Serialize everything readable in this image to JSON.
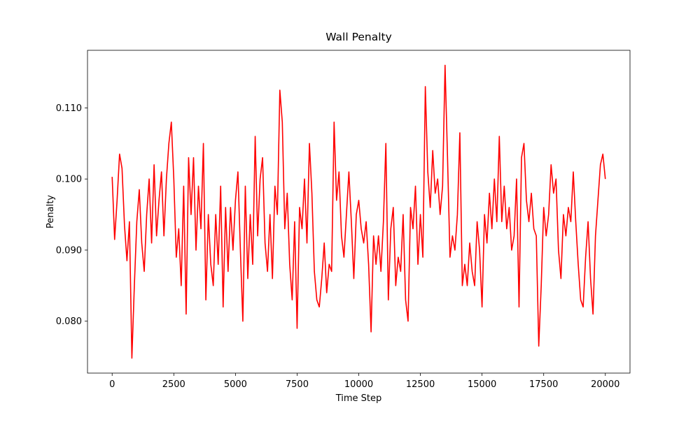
{
  "chart_data": {
    "type": "line",
    "title": "Wall Penalty",
    "x_label": "Time Step",
    "y_label": "Penalty",
    "xlim": [
      -1000,
      21000
    ],
    "ylim": [
      0.0727,
      0.1181
    ],
    "xticks": [
      0,
      2500,
      5000,
      7500,
      10000,
      12500,
      15000,
      17500,
      20000
    ],
    "yticks": [
      {
        "value": 0.08,
        "label": "0.080"
      },
      {
        "value": 0.09,
        "label": "0.090"
      },
      {
        "value": 0.1,
        "label": "0.100"
      },
      {
        "value": 0.11,
        "label": "0.110"
      }
    ],
    "grid": false,
    "x": [
      0,
      100,
      200,
      300,
      400,
      500,
      600,
      700,
      800,
      900,
      1000,
      1100,
      1200,
      1300,
      1400,
      1500,
      1600,
      1700,
      1800,
      1900,
      2000,
      2100,
      2200,
      2300,
      2400,
      2500,
      2600,
      2700,
      2800,
      2900,
      3000,
      3100,
      3200,
      3300,
      3400,
      3500,
      3600,
      3700,
      3800,
      3900,
      4000,
      4100,
      4200,
      4300,
      4400,
      4500,
      4600,
      4700,
      4800,
      4900,
      5000,
      5100,
      5200,
      5300,
      5400,
      5500,
      5600,
      5700,
      5800,
      5900,
      6000,
      6100,
      6200,
      6300,
      6400,
      6500,
      6600,
      6700,
      6800,
      6900,
      7000,
      7100,
      7200,
      7300,
      7400,
      7500,
      7600,
      7700,
      7800,
      7900,
      8000,
      8100,
      8200,
      8300,
      8400,
      8500,
      8600,
      8700,
      8800,
      8900,
      9000,
      9100,
      9200,
      9300,
      9400,
      9500,
      9600,
      9700,
      9800,
      9900,
      10000,
      10100,
      10200,
      10300,
      10400,
      10500,
      10600,
      10700,
      10800,
      10900,
      11000,
      11100,
      11200,
      11300,
      11400,
      11500,
      11600,
      11700,
      11800,
      11900,
      12000,
      12100,
      12200,
      12300,
      12400,
      12500,
      12600,
      12700,
      12800,
      12900,
      13000,
      13100,
      13200,
      13300,
      13400,
      13500,
      13600,
      13700,
      13800,
      13900,
      14000,
      14100,
      14200,
      14300,
      14400,
      14500,
      14600,
      14700,
      14800,
      14900,
      15000,
      15100,
      15200,
      15300,
      15400,
      15500,
      15600,
      15700,
      15800,
      15900,
      16000,
      16100,
      16200,
      16300,
      16400,
      16500,
      16600,
      16700,
      16800,
      16900,
      17000,
      17100,
      17200,
      17300,
      17400,
      17500,
      17600,
      17700,
      17800,
      17900,
      18000,
      18100,
      18200,
      18300,
      18400,
      18500,
      18600,
      18700,
      18800,
      18900,
      19000,
      19100,
      19200,
      19300,
      19400,
      19500,
      19600,
      19700,
      19800,
      19900,
      20000
    ],
    "series": [
      {
        "name": "Wall Penalty",
        "color": "#ff0000",
        "values": [
          0.1003,
          0.0915,
          0.097,
          0.1035,
          0.1015,
          0.0935,
          0.0885,
          0.094,
          0.0748,
          0.085,
          0.094,
          0.0985,
          0.091,
          0.087,
          0.095,
          0.1,
          0.091,
          0.102,
          0.092,
          0.097,
          0.101,
          0.092,
          0.1,
          0.105,
          0.108,
          0.1,
          0.089,
          0.093,
          0.085,
          0.099,
          0.081,
          0.103,
          0.095,
          0.103,
          0.09,
          0.099,
          0.093,
          0.105,
          0.083,
          0.095,
          0.088,
          0.085,
          0.095,
          0.088,
          0.099,
          0.082,
          0.096,
          0.087,
          0.096,
          0.09,
          0.097,
          0.101,
          0.09,
          0.08,
          0.099,
          0.086,
          0.095,
          0.088,
          0.106,
          0.092,
          0.1,
          0.103,
          0.091,
          0.087,
          0.095,
          0.086,
          0.099,
          0.095,
          0.1125,
          0.108,
          0.093,
          0.098,
          0.088,
          0.083,
          0.094,
          0.079,
          0.096,
          0.093,
          0.1,
          0.091,
          0.105,
          0.098,
          0.087,
          0.083,
          0.082,
          0.086,
          0.091,
          0.084,
          0.088,
          0.087,
          0.108,
          0.097,
          0.101,
          0.092,
          0.089,
          0.095,
          0.101,
          0.094,
          0.086,
          0.095,
          0.097,
          0.093,
          0.091,
          0.094,
          0.088,
          0.0785,
          0.092,
          0.088,
          0.092,
          0.087,
          0.094,
          0.105,
          0.083,
          0.093,
          0.096,
          0.085,
          0.089,
          0.087,
          0.095,
          0.083,
          0.08,
          0.096,
          0.093,
          0.099,
          0.088,
          0.095,
          0.089,
          0.113,
          0.101,
          0.096,
          0.104,
          0.098,
          0.1,
          0.095,
          0.099,
          0.116,
          0.103,
          0.089,
          0.092,
          0.09,
          0.095,
          0.1065,
          0.085,
          0.088,
          0.085,
          0.091,
          0.087,
          0.085,
          0.094,
          0.09,
          0.082,
          0.095,
          0.091,
          0.098,
          0.093,
          0.1,
          0.094,
          0.106,
          0.094,
          0.099,
          0.093,
          0.096,
          0.09,
          0.092,
          0.1,
          0.082,
          0.103,
          0.105,
          0.097,
          0.094,
          0.098,
          0.093,
          0.092,
          0.0765,
          0.085,
          0.096,
          0.092,
          0.095,
          0.102,
          0.098,
          0.1,
          0.09,
          0.086,
          0.095,
          0.092,
          0.096,
          0.094,
          0.101,
          0.094,
          0.088,
          0.083,
          0.082,
          0.089,
          0.094,
          0.086,
          0.081,
          0.092,
          0.097,
          0.102,
          0.1035,
          0.1
        ]
      }
    ]
  }
}
